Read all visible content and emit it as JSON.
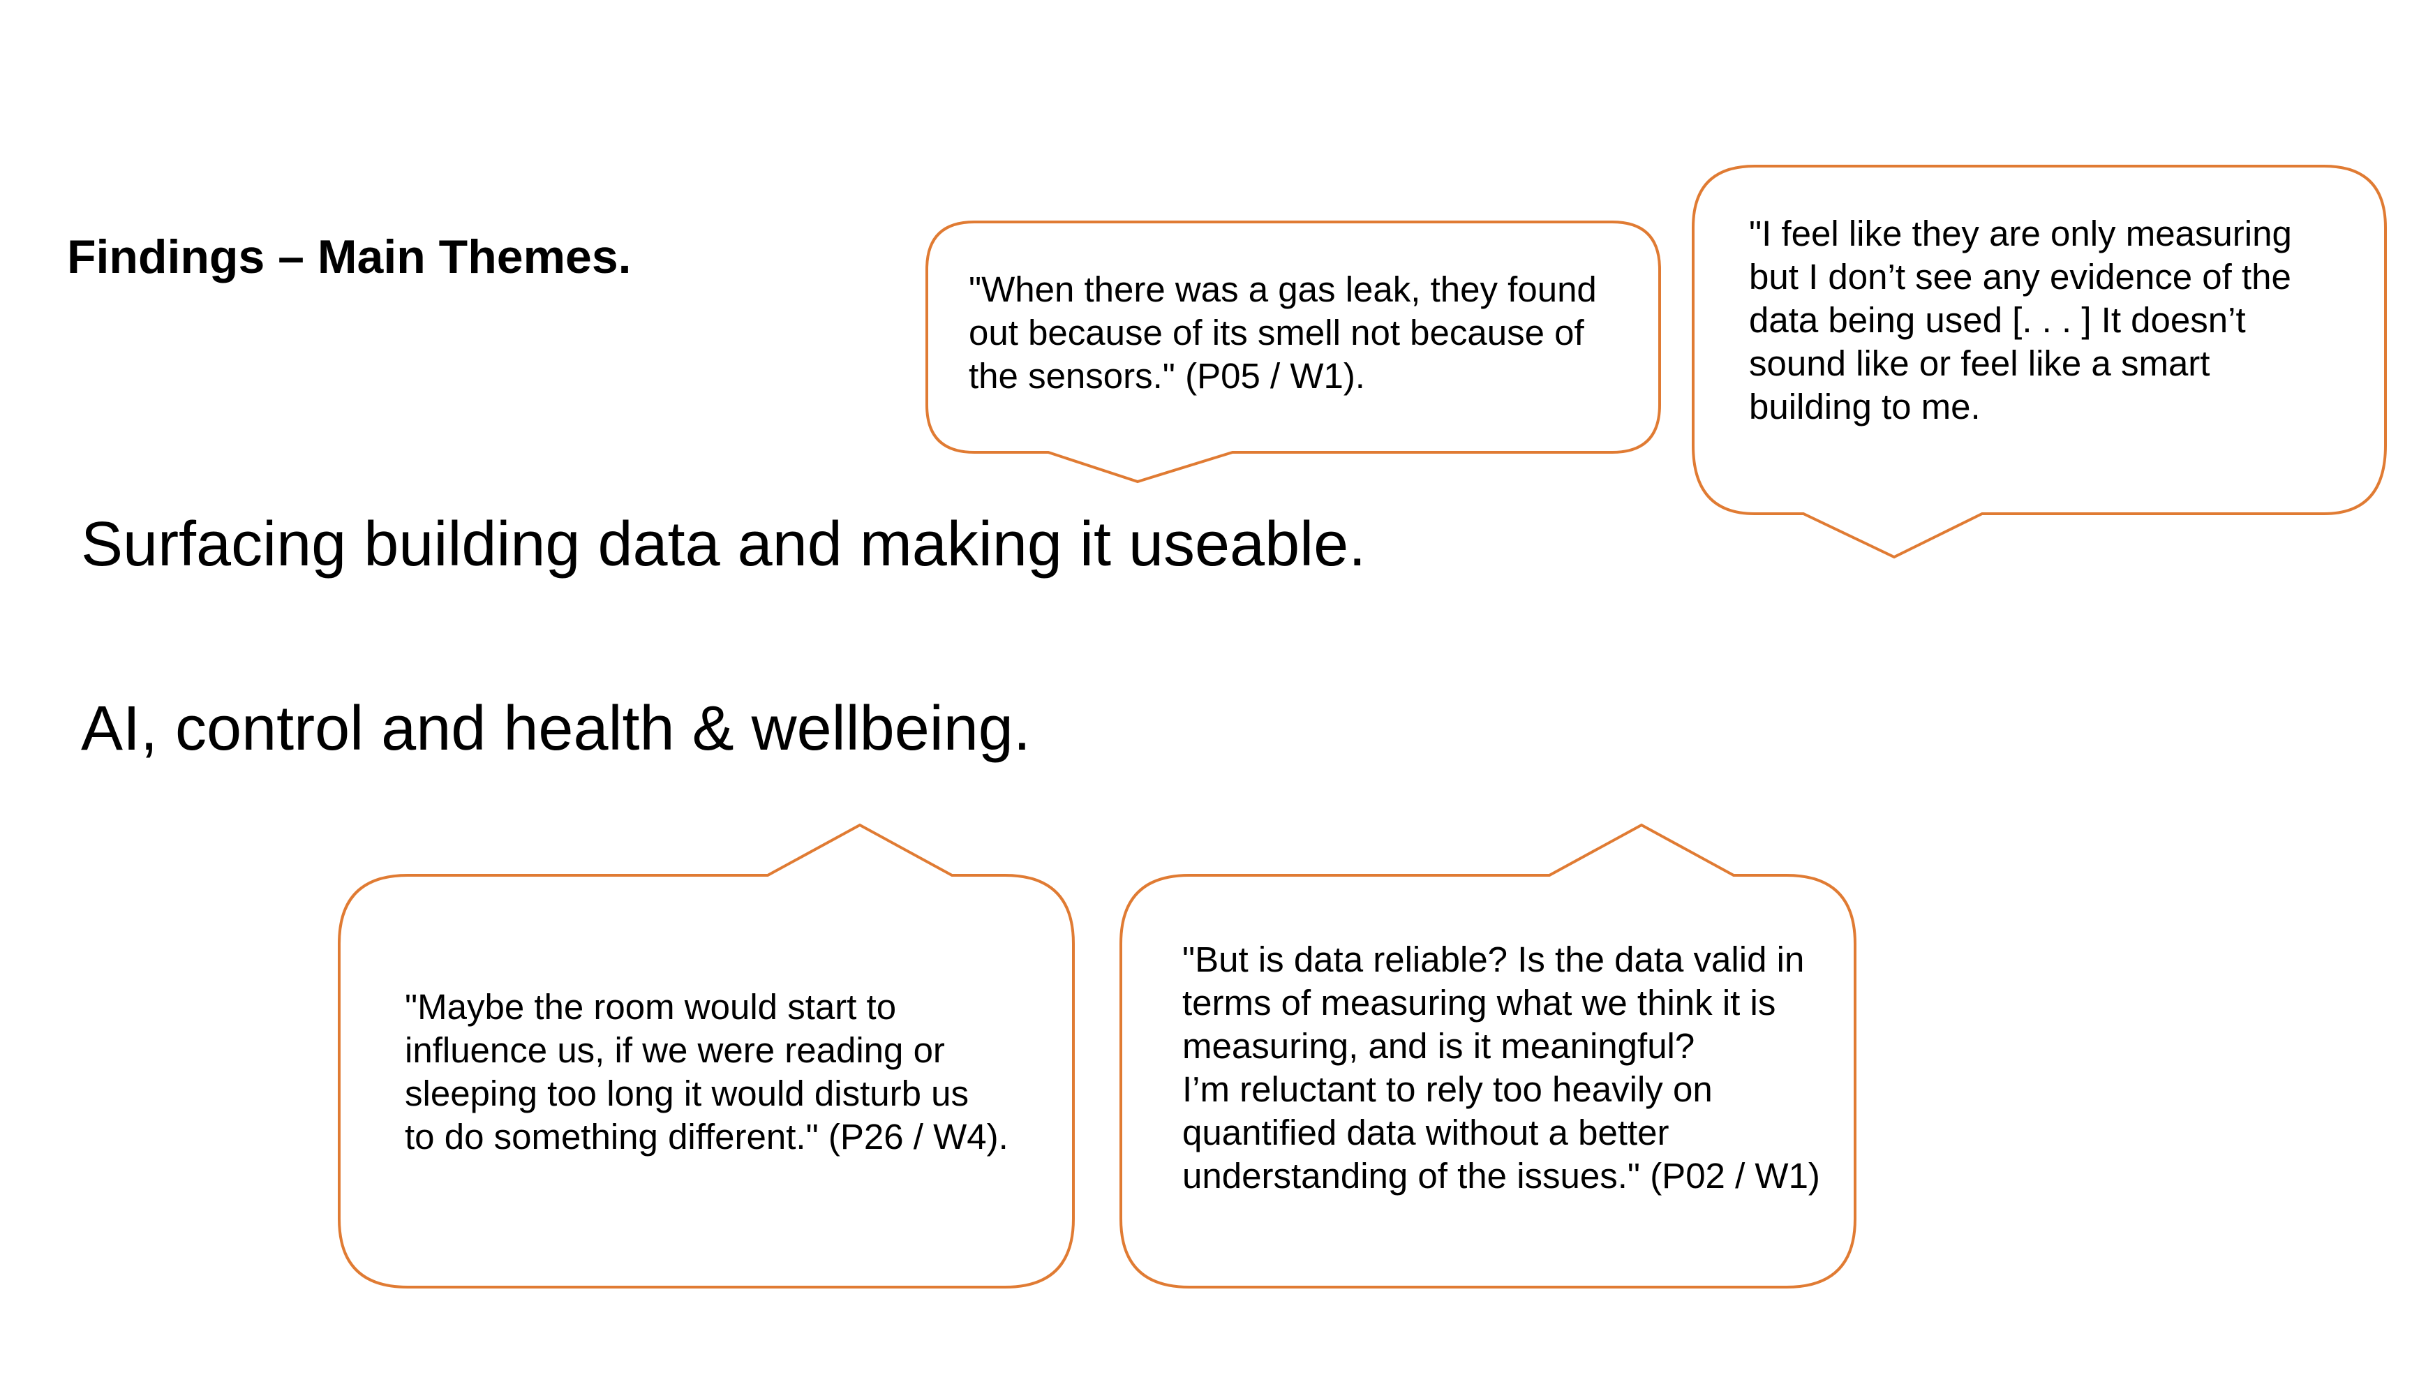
{
  "heading": "Findings – Main Themes.",
  "themes": [
    "Surfacing building data and making it useable.",
    "AI, control and health & wellbeing."
  ],
  "quotes": {
    "gas_leak": "\"When there was a gas leak, they found\nout because of its smell not because of\nthe sensors.\" (P05 / W1).",
    "only_measuring": "\"I feel like they are only measuring\nbut I don’t see any evidence of the\ndata being used [. . . ] It doesn’t\nsound like or feel like a smart\nbuilding to me.",
    "maybe_room": "\"Maybe the room would start to\ninfluence us, if we were reading or\nsleeping too long it would disturb us\nto do something different.\" (P26 / W4).",
    "data_reliable": "\"But is data reliable? Is the data valid in\nterms of measuring what we think it is\nmeasuring, and is it meaningful?\nI’m reluctant to rely too heavily on\nquantified data without a better\nunderstanding of the issues.\" (P02 / W1)"
  },
  "colors": {
    "bubble_outline": "#e07b33",
    "text": "#000000",
    "background": "#ffffff"
  }
}
